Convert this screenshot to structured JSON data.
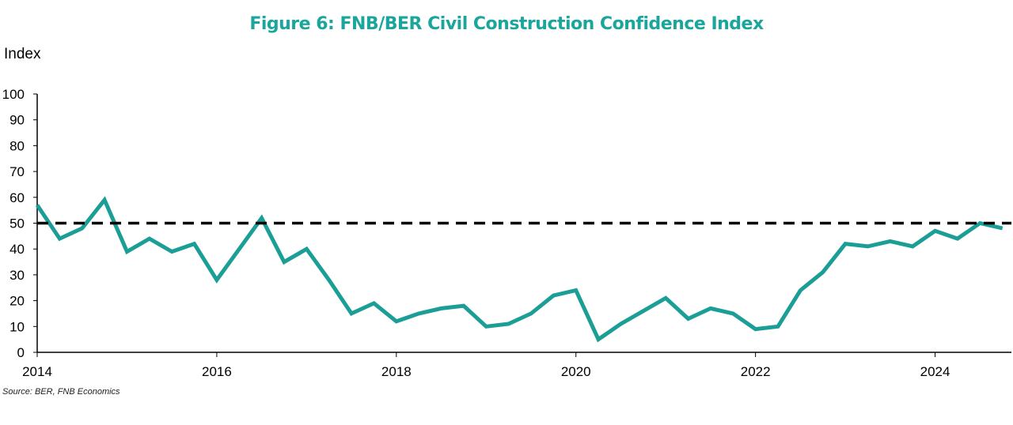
{
  "title": "Figure 6: FNB/BER Civil Construction Confidence Index",
  "ylabel": "Index",
  "source": "Source: BER, FNB Economics",
  "colors": {
    "series": "#1a9e96",
    "reference": "#000000",
    "title": "#1aa59d"
  },
  "chart_data": {
    "type": "line",
    "title": "Figure 6: FNB/BER Civil Construction Confidence Index",
    "xlabel": "",
    "ylabel": "Index",
    "ylim": [
      0,
      100
    ],
    "yticks": [
      0,
      10,
      20,
      30,
      40,
      50,
      60,
      70,
      80,
      90,
      100
    ],
    "xlim": [
      2014.0,
      2024.85
    ],
    "xticks": [
      2014,
      2016,
      2018,
      2020,
      2022,
      2024
    ],
    "grid": false,
    "series": [
      {
        "style": "solid",
        "x": [
          2014.0,
          2014.25,
          2014.5,
          2014.75,
          2015.0,
          2015.25,
          2015.5,
          2015.75,
          2016.0,
          2016.25,
          2016.5,
          2016.75,
          2017.0,
          2017.25,
          2017.5,
          2017.75,
          2018.0,
          2018.25,
          2018.5,
          2018.75,
          2019.0,
          2019.25,
          2019.5,
          2019.75,
          2020.0,
          2020.25,
          2020.5,
          2020.75,
          2021.0,
          2021.25,
          2021.5,
          2021.75,
          2022.0,
          2022.25,
          2022.5,
          2022.75,
          2023.0,
          2023.25,
          2023.5,
          2023.75,
          2024.0,
          2024.25,
          2024.5,
          2024.75
        ],
        "values": [
          57,
          44,
          48,
          59,
          39,
          44,
          39,
          42,
          28,
          40,
          52,
          35,
          40,
          28,
          15,
          19,
          12,
          15,
          17,
          18,
          10,
          11,
          15,
          22,
          24,
          5,
          11,
          16,
          21,
          13,
          17,
          15,
          9,
          10,
          24,
          31,
          42,
          41,
          43,
          41,
          47,
          44,
          50,
          48
        ]
      },
      {
        "style": "dashed",
        "x": [
          2014.0,
          2024.85
        ],
        "values": [
          50,
          50
        ]
      }
    ]
  }
}
